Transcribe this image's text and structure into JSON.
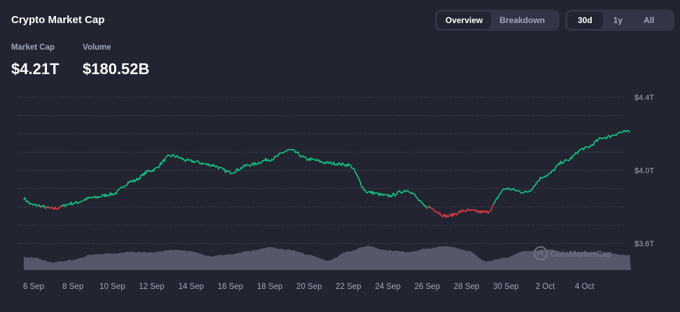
{
  "header": {
    "title": "Crypto Market Cap",
    "view_toggle": {
      "options": [
        "Overview",
        "Breakdown"
      ],
      "selected": "Overview"
    },
    "range_toggle": {
      "options": [
        "30d",
        "1y",
        "All"
      ],
      "selected": "30d"
    }
  },
  "stats": {
    "market_cap": {
      "label": "Market Cap",
      "value": "$4.21T"
    },
    "volume": {
      "label": "Volume",
      "value": "$180.52B"
    }
  },
  "watermark": "CoinMarketCap",
  "colors": {
    "background": "#222531",
    "up": "#16c784",
    "down": "#ea3943",
    "grid": "#5b5f6e",
    "volume": "#5e6272"
  },
  "chart_data": {
    "type": "line",
    "xlabel": "",
    "ylabel": "",
    "x_ticks": [
      "6 Sep",
      "8 Sep",
      "10 Sep",
      "12 Sep",
      "14 Sep",
      "16 Sep",
      "18 Sep",
      "20 Sep",
      "22 Sep",
      "24 Sep",
      "26 Sep",
      "28 Sep",
      "30 Sep",
      "2 Oct",
      "4 Oct"
    ],
    "y_ticks": [
      "$3.6T",
      "$4.0T",
      "$4.4T"
    ],
    "ylim": [
      3.6,
      4.4
    ],
    "grid": true,
    "baseline": 3.8,
    "colored_by_baseline": true,
    "series": [
      {
        "points": [
          [
            "5 Sep",
            3.89
          ],
          [
            "6 Sep",
            3.81
          ],
          [
            "7 Sep",
            3.79
          ],
          [
            "8 Sep",
            3.82
          ],
          [
            "9 Sep",
            3.85
          ],
          [
            "10 Sep",
            3.87
          ],
          [
            "11 Sep",
            3.94
          ],
          [
            "12 Sep",
            4.0
          ],
          [
            "13 Sep",
            4.08
          ],
          [
            "14 Sep",
            4.05
          ],
          [
            "15 Sep",
            4.03
          ],
          [
            "16 Sep",
            3.99
          ],
          [
            "17 Sep",
            4.03
          ],
          [
            "18 Sep",
            4.06
          ],
          [
            "19 Sep",
            4.11
          ],
          [
            "20 Sep",
            4.06
          ],
          [
            "21 Sep",
            4.04
          ],
          [
            "22 Sep",
            4.03
          ],
          [
            "23 Sep",
            3.88
          ],
          [
            "24 Sep",
            3.86
          ],
          [
            "25 Sep",
            3.89
          ],
          [
            "26 Sep",
            3.8
          ],
          [
            "27 Sep",
            3.75
          ],
          [
            "28 Sep",
            3.78
          ],
          [
            "29 Sep",
            3.77
          ],
          [
            "30 Sep",
            3.9
          ],
          [
            "1 Oct",
            3.88
          ],
          [
            "2 Oct",
            3.97
          ],
          [
            "3 Oct",
            4.05
          ],
          [
            "4 Oct",
            4.12
          ],
          [
            "5 Oct",
            4.18
          ],
          [
            "6 Oct",
            4.21
          ]
        ]
      }
    ],
    "volume_series": {
      "label": "Volume",
      "points": [
        [
          "5 Sep",
          0.55
        ],
        [
          "6 Sep",
          0.5
        ],
        [
          "7 Sep",
          0.3
        ],
        [
          "8 Sep",
          0.4
        ],
        [
          "9 Sep",
          0.62
        ],
        [
          "10 Sep",
          0.65
        ],
        [
          "11 Sep",
          0.72
        ],
        [
          "12 Sep",
          0.7
        ],
        [
          "13 Sep",
          0.8
        ],
        [
          "14 Sep",
          0.75
        ],
        [
          "15 Sep",
          0.55
        ],
        [
          "16 Sep",
          0.62
        ],
        [
          "17 Sep",
          0.75
        ],
        [
          "18 Sep",
          0.9
        ],
        [
          "19 Sep",
          0.8
        ],
        [
          "20 Sep",
          0.6
        ],
        [
          "21 Sep",
          0.38
        ],
        [
          "22 Sep",
          0.75
        ],
        [
          "23 Sep",
          0.95
        ],
        [
          "24 Sep",
          0.78
        ],
        [
          "25 Sep",
          0.72
        ],
        [
          "26 Sep",
          0.85
        ],
        [
          "27 Sep",
          0.95
        ],
        [
          "28 Sep",
          0.78
        ],
        [
          "29 Sep",
          0.35
        ],
        [
          "30 Sep",
          0.5
        ],
        [
          "1 Oct",
          0.75
        ],
        [
          "2 Oct",
          0.82
        ],
        [
          "3 Oct",
          0.7
        ],
        [
          "4 Oct",
          0.72
        ],
        [
          "5 Oct",
          0.68
        ],
        [
          "6 Oct",
          0.6
        ]
      ]
    }
  }
}
